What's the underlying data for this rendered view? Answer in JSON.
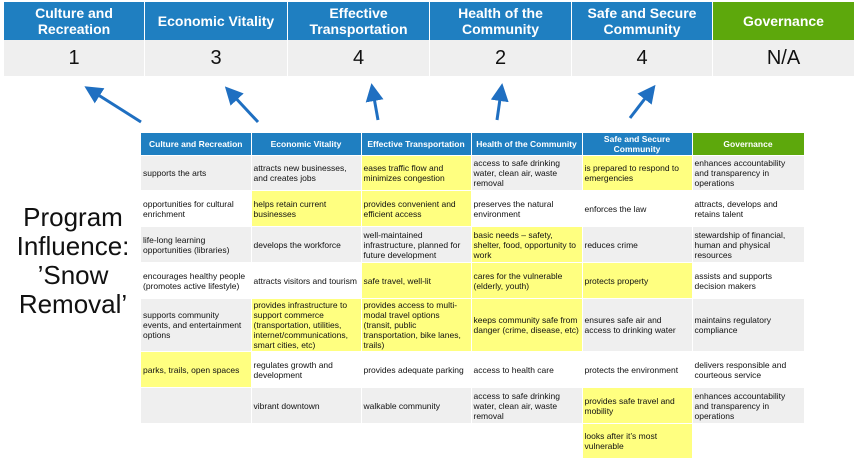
{
  "scores": [
    {
      "label": "Culture and Recreation",
      "score": "1"
    },
    {
      "label": "Economic Vitality",
      "score": "3"
    },
    {
      "label": "Effective Transportation",
      "score": "4"
    },
    {
      "label": "Health of the Community",
      "score": "2"
    },
    {
      "label": "Safe and Secure Community",
      "score": "4"
    },
    {
      "label": "Governance",
      "score": "N/A"
    }
  ],
  "side_title": "Program Influence: ’Snow Removal’",
  "colors": {
    "header_blue": "#1f7fc1",
    "governance_green": "#5da80c",
    "highlight": "#ffff80",
    "arrow": "#1f6fc1"
  },
  "table": {
    "headers": [
      "Culture and Recreation",
      "Economic Vitality",
      "Effective Transportation",
      "Health of the Community",
      "Safe and Secure Community",
      "Governance"
    ],
    "rows": [
      {
        "cells": [
          "supports the arts",
          "attracts new businesses, and creates jobs",
          "eases traffic flow and minimizes congestion",
          "access to safe drinking water, clean air, waste removal",
          "is prepared to respond to emergencies",
          "enhances accountability and transparency in operations"
        ],
        "highlighted": [
          false,
          false,
          true,
          false,
          true,
          false
        ]
      },
      {
        "cells": [
          "opportunities for cultural enrichment",
          "helps retain current businesses",
          "provides convenient and efficient access",
          "preserves the natural environment",
          "enforces the law",
          "attracts, develops and retains talent"
        ],
        "highlighted": [
          false,
          true,
          true,
          false,
          false,
          false
        ]
      },
      {
        "cells": [
          "life-long learning opportunities (libraries)",
          "develops the workforce",
          "well-maintained infrastructure, planned for future development",
          "basic needs – safety, shelter, food, opportunity to work",
          "reduces crime",
          "stewardship of financial, human and physical resources"
        ],
        "highlighted": [
          false,
          false,
          false,
          true,
          false,
          false
        ]
      },
      {
        "cells": [
          "encourages healthy people (promotes active lifestyle)",
          "attracts visitors and tourism",
          "safe travel, well-lit",
          "cares for the vulnerable (elderly, youth)",
          "protects property",
          "assists and supports decision makers"
        ],
        "highlighted": [
          false,
          false,
          true,
          true,
          true,
          false
        ]
      },
      {
        "cells": [
          "supports community events, and entertainment options",
          "provides infrastructure to support commerce (transportation, utilities, internet/communications, smart cities, etc)",
          "provides access to multi-modal travel options (transit, public transportation, bike lanes, trails)",
          "keeps community safe from danger (crime, disease, etc)",
          "ensures safe air and access to drinking water",
          "maintains regulatory compliance"
        ],
        "highlighted": [
          false,
          true,
          true,
          true,
          false,
          false
        ]
      },
      {
        "cells": [
          "parks, trails, open spaces",
          "regulates growth and development",
          "provides adequate parking",
          "access to health care",
          "protects the environment",
          "delivers responsible and courteous service"
        ],
        "highlighted": [
          true,
          false,
          false,
          false,
          false,
          false
        ]
      },
      {
        "cells": [
          "",
          "vibrant downtown",
          "walkable community",
          "access to safe drinking water, clean air, waste removal",
          "provides safe travel and mobility",
          "enhances accountability and transparency in operations"
        ],
        "highlighted": [
          false,
          false,
          false,
          false,
          true,
          false
        ]
      },
      {
        "cells": [
          "",
          "",
          "",
          "",
          "looks after it’s most vulnerable",
          ""
        ],
        "highlighted": [
          false,
          false,
          false,
          false,
          true,
          false
        ]
      }
    ]
  }
}
